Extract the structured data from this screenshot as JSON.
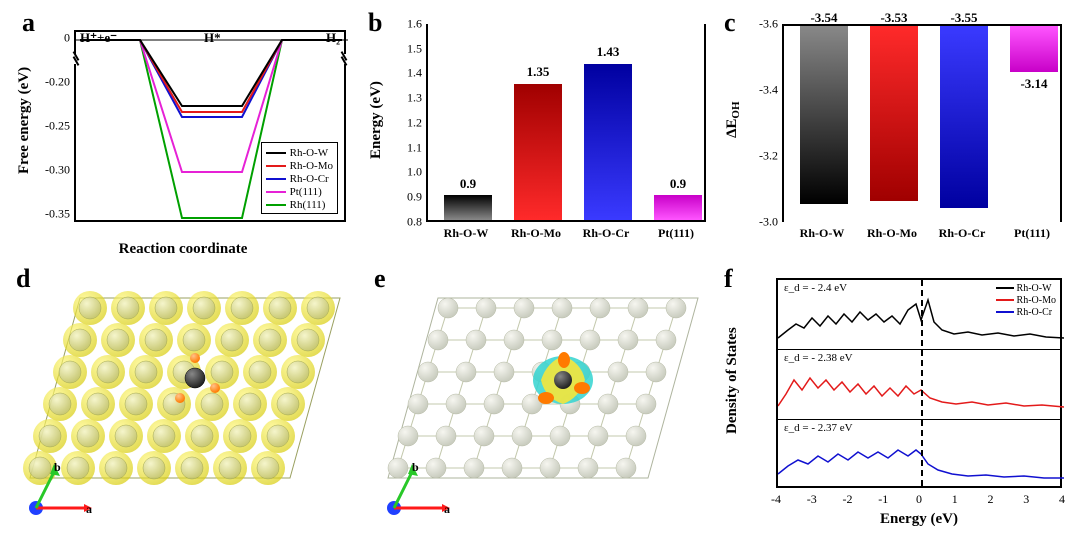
{
  "colors": {
    "series": {
      "Rh-O-W": "#000000",
      "Rh-O-Mo": "#e31a1a",
      "Rh-O-Cr": "#1010d0",
      "Pt(111)": "#e621d6",
      "Rh(111)": "#00a000"
    },
    "bar_gradient_classes": {
      "Rh-O-W": "grad-black",
      "Rh-O-Mo": "grad-red",
      "Rh-O-Cr": "grad-blue",
      "Pt(111)": "grad-mag"
    },
    "atom_surface": "#d8d88c",
    "atom_surface_light": "#e8e8c0",
    "atom_dopant": "#3a3a3a",
    "atom_oxygen": "#ff7a00",
    "wireframe": "#bfc49a",
    "iso_cyan": "#32d4d0",
    "iso_yellow": "#f5e63b",
    "axis_a": "#ff1a1a",
    "axis_b": "#28c828",
    "axis_c": "#2040ff"
  },
  "panel_a": {
    "type": "line",
    "title_markers": {
      "left": "H⁺+e⁻",
      "mid": "H*",
      "right": "H₂"
    },
    "xlabel": "Reaction coordinate",
    "ylabel": "Free energy (eV)",
    "ytick_labels": [
      "0",
      "-0.20",
      "-0.25",
      "-0.30",
      "-0.35"
    ],
    "legend": [
      "Rh-O-W",
      "Rh-O-Mo",
      "Rh-O-Cr",
      "Pt(111)",
      "Rh(111)"
    ],
    "mid_energy_eV": {
      "Rh-O-W": -0.225,
      "Rh-O-Mo": -0.232,
      "Rh-O-Cr": -0.238,
      "Pt(111)": -0.3,
      "Rh(111)": -0.353
    },
    "line_width": 2
  },
  "panel_b": {
    "type": "bar",
    "ylabel": "Energy (eV)",
    "ylim": [
      0.8,
      1.6
    ],
    "ytick_step": 0.1,
    "yticks": [
      "0.8",
      "0.9",
      "1.0",
      "1.1",
      "1.2",
      "1.3",
      "1.4",
      "1.5",
      "1.6"
    ],
    "categories": [
      "Rh-O-W",
      "Rh-O-Mo",
      "Rh-O-Cr",
      "Pt(111)"
    ],
    "values": [
      0.9,
      1.35,
      1.43,
      0.9
    ],
    "value_labels": [
      "0.9",
      "1.35",
      "1.43",
      "0.9"
    ],
    "bar_width": 0.6,
    "label_fontsize": 13
  },
  "panel_c": {
    "type": "bar",
    "ylabel": "ΔE_OH",
    "ylim": [
      -3.0,
      -3.6
    ],
    "ytick_step": 0.2,
    "yticks": [
      "-3.6",
      "-3.4",
      "-3.2",
      "-3.0"
    ],
    "categories": [
      "Rh-O-W",
      "Rh-O-Mo",
      "Rh-O-Cr",
      "Pt(111)"
    ],
    "values": [
      -3.54,
      -3.53,
      -3.55,
      -3.14
    ],
    "value_labels": [
      "-3.54",
      "-3.53",
      "-3.55",
      "-3.14"
    ],
    "inverted_y": true,
    "bar_width": 0.6
  },
  "panel_d": {
    "type": "atomic-surface",
    "description": "charge-density-isosurface",
    "axes": {
      "a_color": "#ff1a1a",
      "b_color": "#28c828",
      "c_color": "#2040ff"
    }
  },
  "panel_e": {
    "type": "atomic-surface",
    "description": "charge-difference-isosurface",
    "axes": {
      "a_color": "#ff1a1a",
      "b_color": "#28c828",
      "c_color": "#2040ff"
    }
  },
  "panel_f": {
    "type": "dos",
    "xlabel": "Energy (eV)",
    "ylabel": "Density of States",
    "xlim": [
      -4,
      4
    ],
    "xticks": [
      "-4",
      "-3",
      "-2",
      "-1",
      "0",
      "1",
      "2",
      "3",
      "4"
    ],
    "series": [
      {
        "name": "Rh-O-W",
        "epsilon_d": "ε_d = - 2.4 eV",
        "color": "#000000"
      },
      {
        "name": "Rh-O-Mo",
        "epsilon_d": "ε_d = - 2.38 eV",
        "color": "#e31a1a"
      },
      {
        "name": "Rh-O-Cr",
        "epsilon_d": "ε_d = - 2.37 eV",
        "color": "#1010d0"
      }
    ],
    "legend": [
      "Rh-O-W",
      "Rh-O-Mo",
      "Rh-O-Cr"
    ],
    "zero_line": true
  },
  "labels": {
    "a": "a",
    "b": "b",
    "c": "c",
    "d": "d",
    "e": "e",
    "f": "f",
    "axis_a": "a",
    "axis_b": "b"
  }
}
